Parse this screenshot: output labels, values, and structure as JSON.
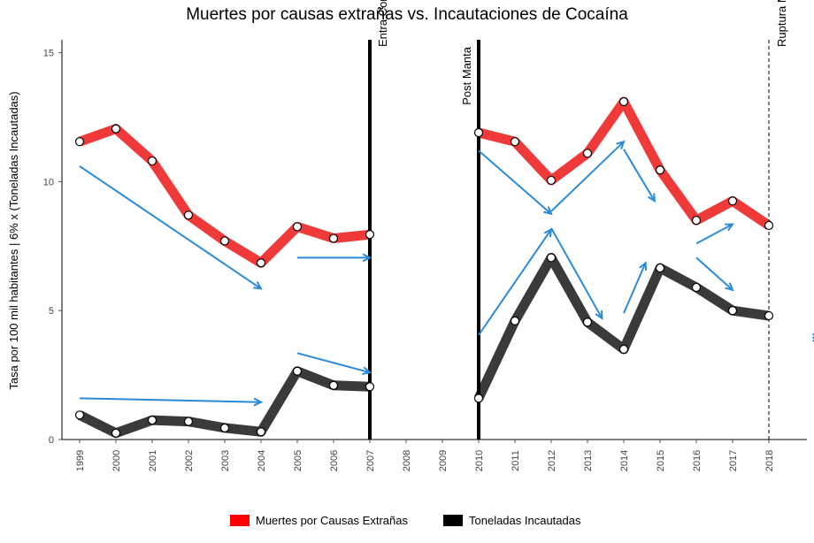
{
  "chart_data": {
    "type": "line",
    "title": "Muertes por causas extrañas  vs.  Incautaciones de Cocaína",
    "xlabel": "",
    "ylabel": "Tasa por 100 mil habitantes  |    6% x (Toneladas Incautadas)",
    "ylim": [
      0,
      15.5
    ],
    "yticks": [
      "0",
      "5",
      "10",
      "15"
    ],
    "x_categories": [
      "1999",
      "2000",
      "2001",
      "2002",
      "2003",
      "2004",
      "2005",
      "2006",
      "2007",
      "2008",
      "2009",
      "2010",
      "2011",
      "2012",
      "2013",
      "2014",
      "2015",
      "2016",
      "2017",
      "2018"
    ],
    "grid": false,
    "legend_position": "bottom",
    "series": [
      {
        "name": "Muertes por Causas Extrañas",
        "color": "#f03a3a",
        "segments": [
          {
            "x": [
              "1999",
              "2000",
              "2001",
              "2002",
              "2003",
              "2004",
              "2005",
              "2006",
              "2007"
            ],
            "y": [
              11.55,
              12.05,
              10.8,
              8.7,
              7.7,
              6.85,
              8.25,
              7.8,
              7.95
            ]
          },
          {
            "x": [
              "2010",
              "2011",
              "2012",
              "2013",
              "2014",
              "2015",
              "2016",
              "2017",
              "2018"
            ],
            "y": [
              11.9,
              11.55,
              10.05,
              11.1,
              13.1,
              10.45,
              8.5,
              9.25,
              8.3
            ]
          }
        ]
      },
      {
        "name": "Toneladas Incautadas",
        "color": "#3a3a3a",
        "segments": [
          {
            "x": [
              "1999",
              "2000",
              "2001",
              "2002",
              "2003",
              "2004",
              "2005",
              "2006",
              "2007"
            ],
            "y": [
              0.95,
              0.25,
              0.75,
              0.7,
              0.45,
              0.3,
              2.65,
              2.1,
              2.05
            ]
          },
          {
            "x": [
              "2010",
              "2011",
              "2012",
              "2013",
              "2014",
              "2015",
              "2016",
              "2017",
              "2018"
            ],
            "y": [
              1.6,
              4.6,
              7.05,
              4.55,
              3.5,
              6.65,
              5.9,
              5.0,
              4.8
            ]
          }
        ]
      }
    ],
    "vertical_lines": [
      {
        "x": "2007",
        "label": "Entra Correa",
        "style": "solid"
      },
      {
        "x": "2010",
        "label": "Post Manta",
        "style": "solid"
      },
      {
        "x": "2018",
        "label": "Ruptura Moreno - Correa",
        "style": "dashed"
      }
    ],
    "arrow_color": "#2b8bd6",
    "arrows": [
      {
        "from": [
          "1999",
          10.6
        ],
        "to": [
          "2004",
          5.85
        ]
      },
      {
        "from": [
          "2005",
          7.05
        ],
        "to": [
          "2007",
          7.05
        ]
      },
      {
        "from": [
          "1999",
          1.6
        ],
        "to": [
          "2004",
          1.45
        ]
      },
      {
        "from": [
          "2005",
          3.35
        ],
        "to": [
          "2007",
          2.6
        ]
      },
      {
        "from": [
          "2010",
          11.2
        ],
        "to": [
          "2012",
          8.75
        ]
      },
      {
        "from": [
          "2012",
          8.85
        ],
        "to": [
          "2014",
          11.55
        ]
      },
      {
        "from": [
          "2014",
          11.25
        ],
        "to": [
          "2014.85",
          9.25
        ]
      },
      {
        "from": [
          "2016",
          7.6
        ],
        "to": [
          "2017",
          8.35
        ]
      },
      {
        "from": [
          "2010",
          4.05
        ],
        "to": [
          "2012",
          8.15
        ]
      },
      {
        "from": [
          "2012",
          8.2
        ],
        "to": [
          "2013.4",
          4.7
        ]
      },
      {
        "from": [
          "2014",
          4.9
        ],
        "to": [
          "2014.6",
          6.85
        ]
      },
      {
        "from": [
          "2016",
          7.05
        ],
        "to": [
          "2017",
          5.8
        ]
      },
      {
        "from": [
          "2019.2",
          3.95
        ],
        "to": [
          "2019.4",
          3.95
        ]
      }
    ]
  }
}
